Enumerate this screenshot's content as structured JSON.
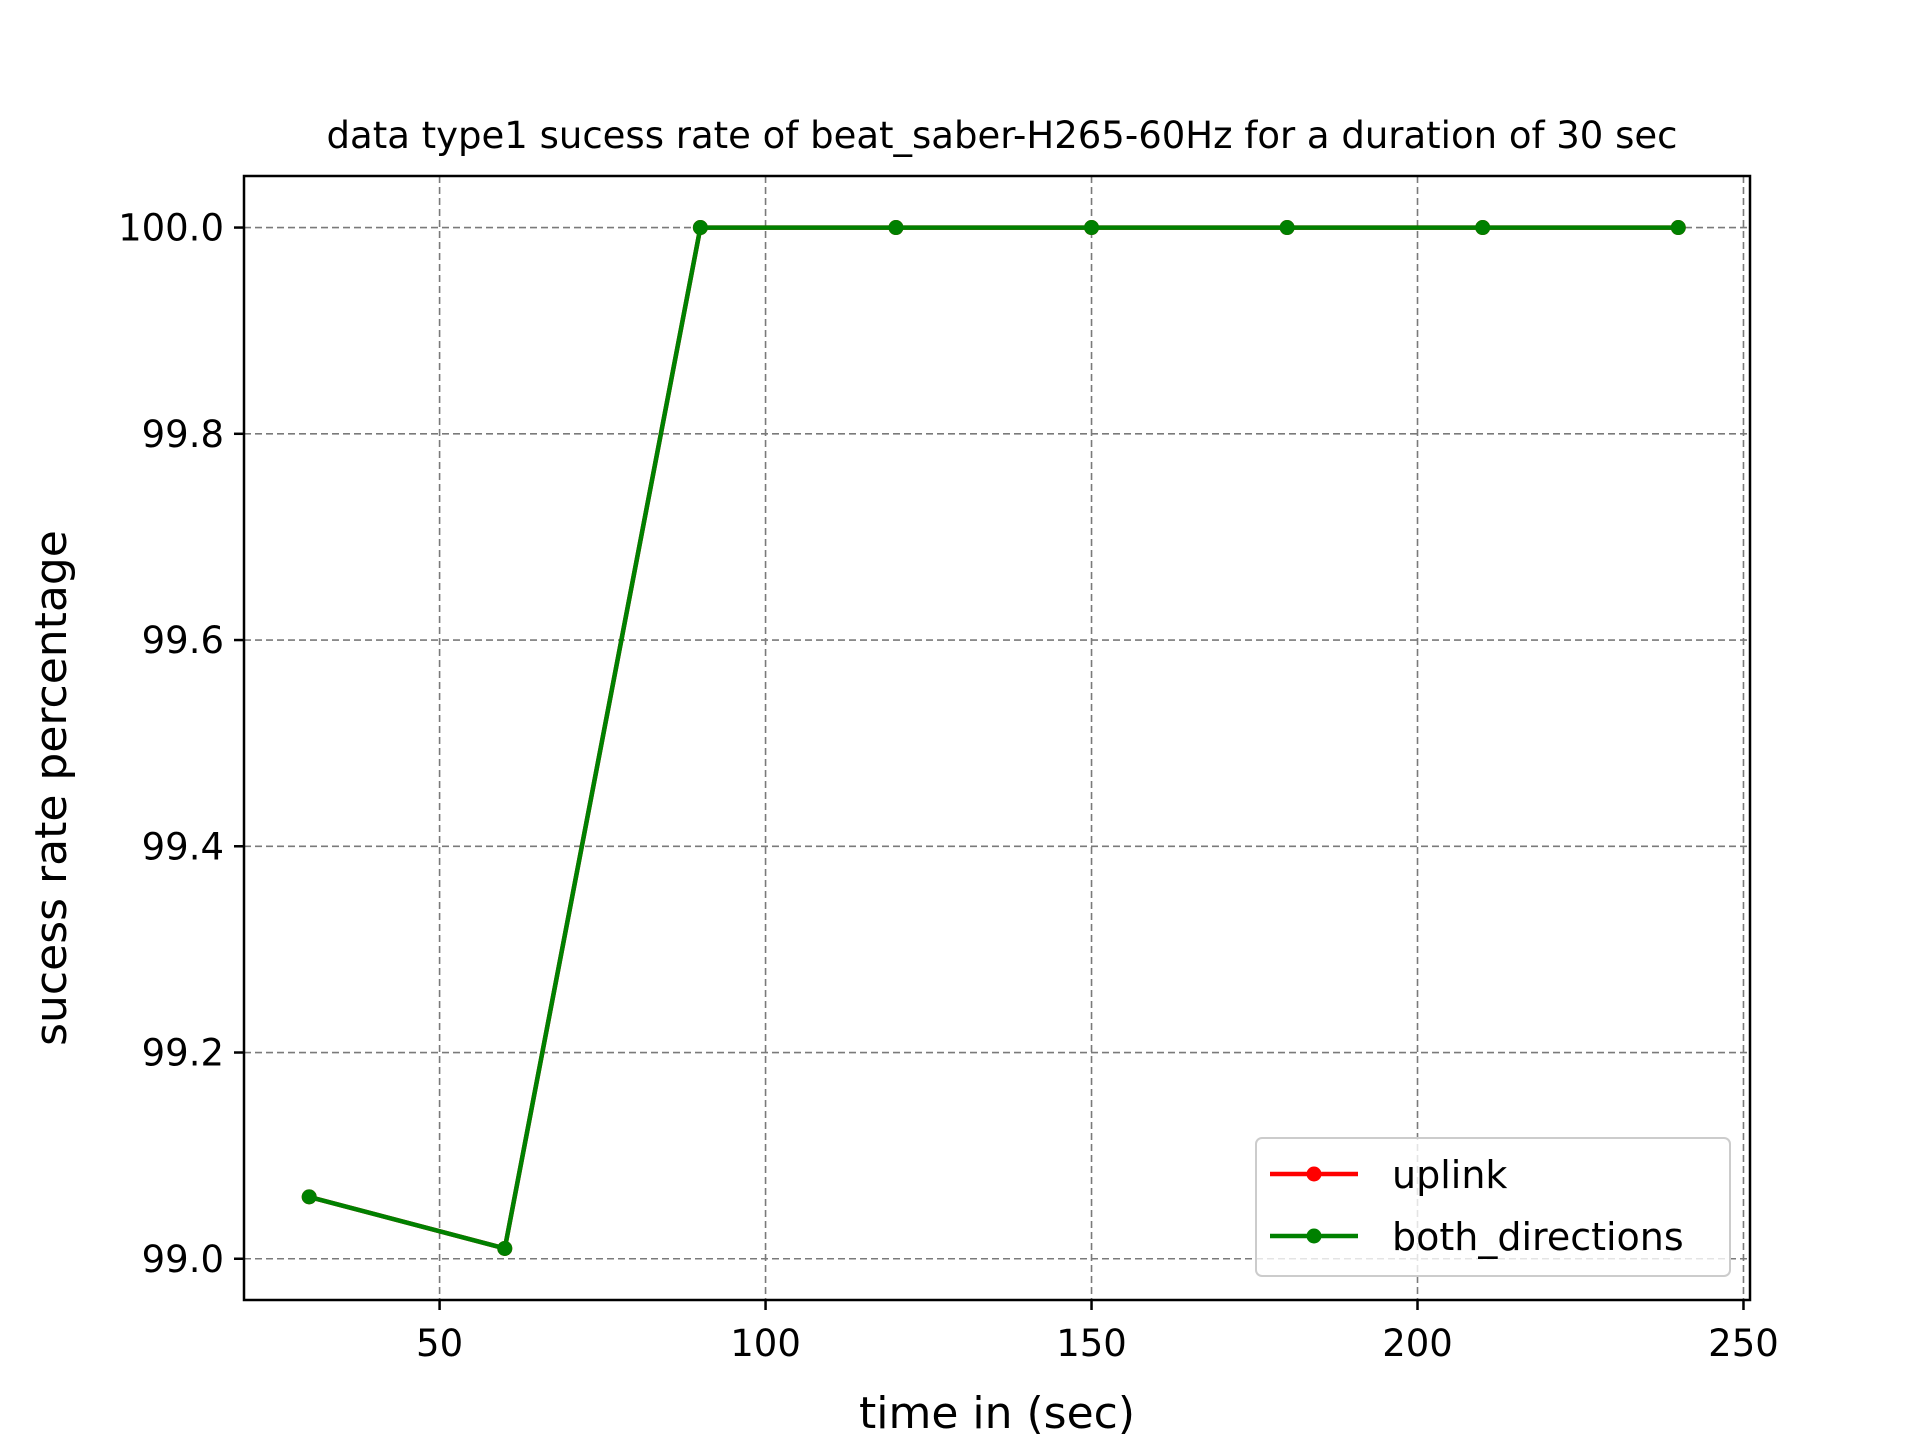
{
  "chart_data": {
    "type": "line",
    "title": "data type1 sucess rate of beat_saber-H265-60Hz for a duration of 30 sec",
    "xlabel": "time in (sec)",
    "ylabel": "sucess rate percentage",
    "xlim": [
      20,
      251
    ],
    "ylim": [
      98.96,
      100.05
    ],
    "xticks": [
      50,
      100,
      150,
      200,
      250
    ],
    "xtick_labels": [
      "50",
      "100",
      "150",
      "200",
      "250"
    ],
    "yticks": [
      99.0,
      99.2,
      99.4,
      99.6,
      99.8,
      100.0
    ],
    "ytick_labels": [
      "99.0",
      "99.2",
      "99.4",
      "99.6",
      "99.8",
      "100.0"
    ],
    "grid": true,
    "legend_position": "lower right",
    "x": [
      30,
      60,
      90,
      120,
      150,
      180,
      210,
      240
    ],
    "series": [
      {
        "name": "uplink",
        "color": "#ff0000",
        "marker": "circle",
        "values": [
          99.06,
          99.01,
          100.0,
          100.0,
          100.0,
          100.0,
          100.0,
          100.0
        ]
      },
      {
        "name": "both_directions",
        "color": "#008000",
        "marker": "circle",
        "values": [
          99.06,
          99.01,
          100.0,
          100.0,
          100.0,
          100.0,
          100.0,
          100.0
        ]
      }
    ]
  }
}
